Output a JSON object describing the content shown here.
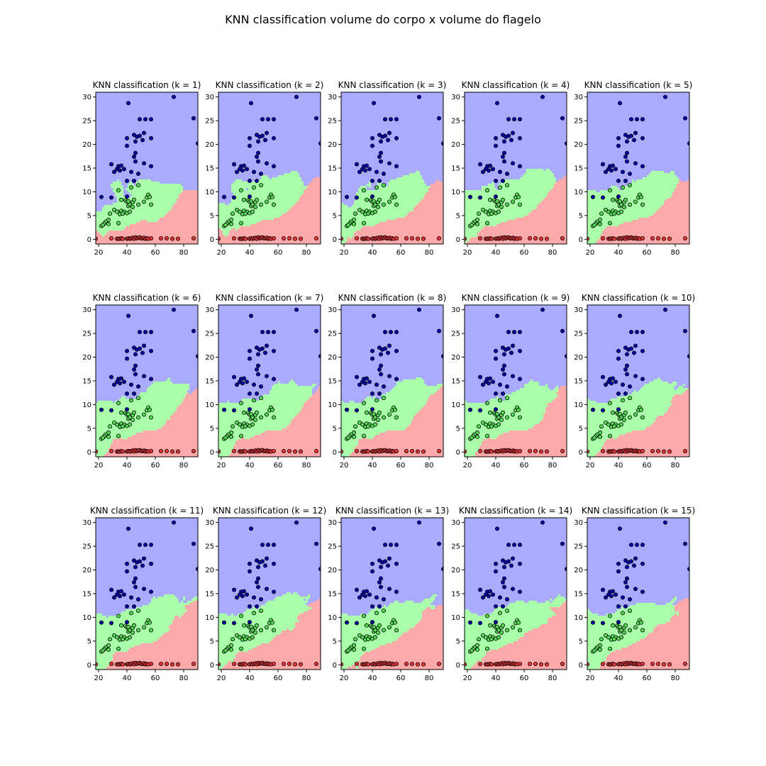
{
  "figure_title": "KNN classification volume do corpo x volume do  flagelo",
  "class_colors": {
    "region": [
      "#ffaaaa",
      "#aaffaa",
      "#aaaaff"
    ],
    "point": [
      "#ff0000",
      "#00ff00",
      "#0000ff"
    ],
    "blue_point": "#0000aa",
    "green_point": "#55dd55",
    "red_point": "#ee3333",
    "edge": "#000000"
  },
  "chart_data": {
    "type": "scatter",
    "subplot_titles": [
      "KNN classification (k = 1)",
      "KNN classification (k = 2)",
      "KNN classification (k = 3)",
      "KNN classification (k = 4)",
      "KNN classification (k = 5)",
      "KNN classification (k = 6)",
      "KNN classification (k = 7)",
      "KNN classification (k = 8)",
      "KNN classification (k = 9)",
      "KNN classification (k = 10)",
      "KNN classification (k = 11)",
      "KNN classification (k = 12)",
      "KNN classification (k = 13)",
      "KNN classification (k = 14)",
      "KNN classification (k = 15)"
    ],
    "k_values": [
      1,
      2,
      3,
      4,
      5,
      6,
      7,
      8,
      9,
      10,
      11,
      12,
      13,
      14,
      15
    ],
    "xlim": [
      18,
      90
    ],
    "ylim": [
      -1,
      31
    ],
    "x_ticks": [
      20,
      40,
      60,
      80
    ],
    "y_ticks": [
      0,
      5,
      10,
      15,
      20,
      25,
      30
    ],
    "tick_labels_x": [
      "20",
      "40",
      "60",
      "80"
    ],
    "tick_labels_y": [
      "0",
      "5",
      "10",
      "15",
      "20",
      "25",
      "30"
    ],
    "grid": false,
    "points": [
      {
        "x": 41,
        "y": 28.7,
        "c": 2
      },
      {
        "x": 73,
        "y": 30,
        "c": 2
      },
      {
        "x": 87,
        "y": 25.5,
        "c": 2
      },
      {
        "x": 90,
        "y": 20.2,
        "c": 2
      },
      {
        "x": 49,
        "y": 25.3,
        "c": 2
      },
      {
        "x": 53,
        "y": 25.3,
        "c": 2
      },
      {
        "x": 57,
        "y": 25.3,
        "c": 2
      },
      {
        "x": 45,
        "y": 22,
        "c": 2
      },
      {
        "x": 47,
        "y": 21.6,
        "c": 2
      },
      {
        "x": 49,
        "y": 21.8,
        "c": 2
      },
      {
        "x": 52,
        "y": 22.4,
        "c": 2
      },
      {
        "x": 57,
        "y": 21.3,
        "c": 2
      },
      {
        "x": 40,
        "y": 21.3,
        "c": 2
      },
      {
        "x": 46,
        "y": 20.6,
        "c": 2
      },
      {
        "x": 51,
        "y": 20.9,
        "c": 2
      },
      {
        "x": 40,
        "y": 19.7,
        "c": 2
      },
      {
        "x": 46,
        "y": 18.2,
        "c": 2
      },
      {
        "x": 45,
        "y": 17.4,
        "c": 2
      },
      {
        "x": 46,
        "y": 16.4,
        "c": 2
      },
      {
        "x": 52,
        "y": 16,
        "c": 2
      },
      {
        "x": 29,
        "y": 15.8,
        "c": 2
      },
      {
        "x": 34,
        "y": 15.4,
        "c": 2
      },
      {
        "x": 36,
        "y": 15.5,
        "c": 2
      },
      {
        "x": 33,
        "y": 14.8,
        "c": 2
      },
      {
        "x": 31,
        "y": 14.2,
        "c": 2
      },
      {
        "x": 35,
        "y": 14.5,
        "c": 2
      },
      {
        "x": 38,
        "y": 14.8,
        "c": 2
      },
      {
        "x": 43,
        "y": 14.2,
        "c": 2
      },
      {
        "x": 48,
        "y": 13.8,
        "c": 2
      },
      {
        "x": 57,
        "y": 15.4,
        "c": 2
      },
      {
        "x": 40,
        "y": 12.3,
        "c": 2
      },
      {
        "x": 45,
        "y": 12.3,
        "c": 2
      },
      {
        "x": 22,
        "y": 8.9,
        "c": 2
      },
      {
        "x": 40,
        "y": 9,
        "c": 2
      },
      {
        "x": 29,
        "y": 8.8,
        "c": 2
      },
      {
        "x": 34,
        "y": 10.3,
        "c": 1
      },
      {
        "x": 43,
        "y": 10.9,
        "c": 1
      },
      {
        "x": 48,
        "y": 11.4,
        "c": 1
      },
      {
        "x": 36,
        "y": 8.3,
        "c": 1
      },
      {
        "x": 39,
        "y": 8.2,
        "c": 1
      },
      {
        "x": 40,
        "y": 7.9,
        "c": 1
      },
      {
        "x": 41,
        "y": 8,
        "c": 1
      },
      {
        "x": 44,
        "y": 7.8,
        "c": 1
      },
      {
        "x": 45,
        "y": 8.3,
        "c": 1
      },
      {
        "x": 52,
        "y": 7.9,
        "c": 1
      },
      {
        "x": 54,
        "y": 8.8,
        "c": 1
      },
      {
        "x": 55,
        "y": 9.4,
        "c": 1
      },
      {
        "x": 56,
        "y": 8.9,
        "c": 1
      },
      {
        "x": 41,
        "y": 7,
        "c": 1
      },
      {
        "x": 42,
        "y": 7.3,
        "c": 1
      },
      {
        "x": 44,
        "y": 6.8,
        "c": 1
      },
      {
        "x": 48,
        "y": 7.3,
        "c": 1
      },
      {
        "x": 31,
        "y": 6.2,
        "c": 1
      },
      {
        "x": 33,
        "y": 5.8,
        "c": 1
      },
      {
        "x": 36,
        "y": 6,
        "c": 1
      },
      {
        "x": 38,
        "y": 5.8,
        "c": 1
      },
      {
        "x": 40,
        "y": 5.5,
        "c": 1
      },
      {
        "x": 42,
        "y": 5.8,
        "c": 1
      },
      {
        "x": 28,
        "y": 5.4,
        "c": 1
      },
      {
        "x": 35,
        "y": 5.3,
        "c": 1
      },
      {
        "x": 37,
        "y": 5.4,
        "c": 1
      },
      {
        "x": 57,
        "y": 7.3,
        "c": 1
      },
      {
        "x": 27,
        "y": 4.1,
        "c": 1
      },
      {
        "x": 25,
        "y": 3.7,
        "c": 1
      },
      {
        "x": 24,
        "y": 3.3,
        "c": 1
      },
      {
        "x": 22,
        "y": 2.8,
        "c": 1
      },
      {
        "x": 23,
        "y": 3,
        "c": 1
      },
      {
        "x": 34,
        "y": 3.4,
        "c": 1
      },
      {
        "x": 27,
        "y": 3.2,
        "c": 1
      },
      {
        "x": 18,
        "y": 0.1,
        "c": 0
      },
      {
        "x": 29,
        "y": 0.2,
        "c": 0
      },
      {
        "x": 33,
        "y": 0.1,
        "c": 0
      },
      {
        "x": 34,
        "y": 0.1,
        "c": 0
      },
      {
        "x": 35,
        "y": 0.1,
        "c": 0
      },
      {
        "x": 36,
        "y": 0.2,
        "c": 0
      },
      {
        "x": 37,
        "y": 0.1,
        "c": 0
      },
      {
        "x": 40,
        "y": 0.1,
        "c": 0
      },
      {
        "x": 41,
        "y": 0.2,
        "c": 0
      },
      {
        "x": 42,
        "y": 0.1,
        "c": 0
      },
      {
        "x": 43,
        "y": 0.2,
        "c": 0
      },
      {
        "x": 44,
        "y": 0.3,
        "c": 0
      },
      {
        "x": 45,
        "y": 0.1,
        "c": 0
      },
      {
        "x": 46,
        "y": 0.4,
        "c": 0
      },
      {
        "x": 47,
        "y": 0.2,
        "c": 0
      },
      {
        "x": 48,
        "y": 0.3,
        "c": 0
      },
      {
        "x": 49,
        "y": 0.4,
        "c": 0
      },
      {
        "x": 50,
        "y": 0.2,
        "c": 0
      },
      {
        "x": 51,
        "y": 0.2,
        "c": 0
      },
      {
        "x": 52,
        "y": 0.3,
        "c": 0
      },
      {
        "x": 53,
        "y": 0.1,
        "c": 0
      },
      {
        "x": 54,
        "y": 0.2,
        "c": 0
      },
      {
        "x": 55,
        "y": 0.1,
        "c": 0
      },
      {
        "x": 57,
        "y": 0.2,
        "c": 0
      },
      {
        "x": 64,
        "y": 0.2,
        "c": 0
      },
      {
        "x": 68,
        "y": 0.2,
        "c": 0
      },
      {
        "x": 72,
        "y": 0.1,
        "c": 0
      },
      {
        "x": 76,
        "y": 0.1,
        "c": 0
      },
      {
        "x": 87,
        "y": 0.2,
        "c": 0
      }
    ]
  }
}
